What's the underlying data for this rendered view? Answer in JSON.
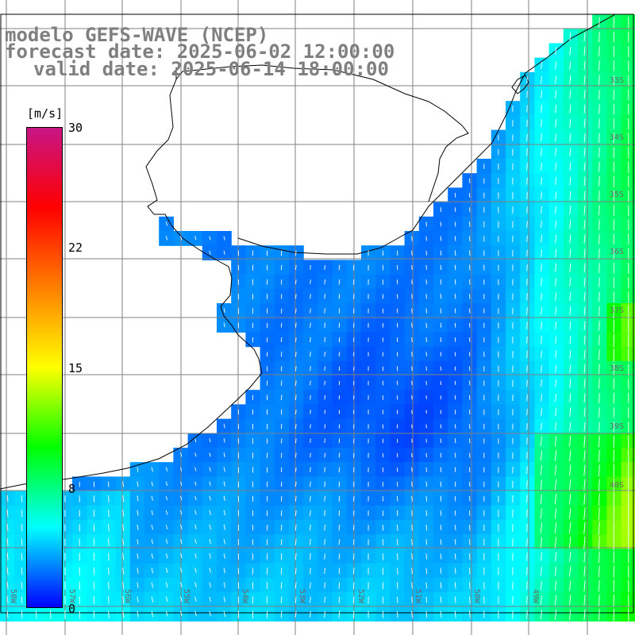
{
  "title": {
    "line1": "modelo GEFS-WAVE (NCEP)",
    "line2": "forecast date: 2025-06-02 12:00:00",
    "line3": "valid date: 2025-06-14 18:00:00"
  },
  "colorbar": {
    "unit": "[m/s]",
    "ticks": [
      "30",
      "22",
      "15",
      "8",
      "0"
    ],
    "tick_values": [
      30,
      22,
      15,
      8,
      0
    ],
    "range": [
      0,
      30
    ],
    "colors": [
      "#0000ff",
      "#00ffff",
      "#00ff00",
      "#ffff00",
      "#ff7f00",
      "#ff0000",
      "#c71585"
    ]
  },
  "map": {
    "lat_labels": [
      "33S",
      "34S",
      "35S",
      "36S",
      "37S",
      "38S",
      "39S",
      "40S"
    ],
    "lon_labels": [
      "58W",
      "57W",
      "56W",
      "55W",
      "54W",
      "53W",
      "52W",
      "51W",
      "50W",
      "49W"
    ],
    "land_color": "#ffffff",
    "grid_color": "#808080",
    "coast_color": "#000000",
    "arrow_color": "#ffffff"
  }
}
